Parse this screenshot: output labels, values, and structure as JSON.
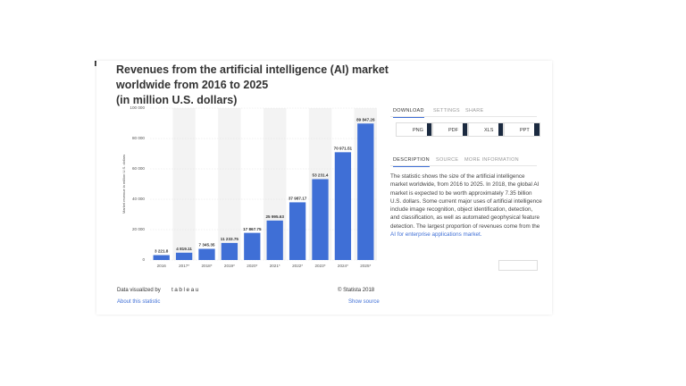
{
  "chart_data": {
    "type": "bar",
    "title": "Revenues from the artificial intelligence (AI) market worldwide from 2016 to 2025",
    "subtitle": "(in million U.S. dollars)",
    "y_label": "Market revenue in million U.S. dollars",
    "categories": [
      "2016",
      "2017*",
      "2018*",
      "2019*",
      "2020*",
      "2021*",
      "2022*",
      "2023*",
      "2024*",
      "2025*"
    ],
    "values": [
      3221.8,
      4819.11,
      7345.35,
      11233.75,
      17867.75,
      25995.63,
      37987.17,
      53231.4,
      70971.51,
      89847.26
    ],
    "value_labels": [
      "3 221.8",
      "4 819.11",
      "7 345.35",
      "11 233.75",
      "17 867.75",
      "25 995.63",
      "37 987.17",
      "53 231.4",
      "70 971.51",
      "89 847.26"
    ],
    "color": "#3f6fd6",
    "ylim": [
      0,
      100000
    ],
    "yticks": [
      0,
      {
        "value": 20000,
        "label": "20 000"
      },
      {
        "value": 40000,
        "label": "40 000"
      },
      {
        "value": 60000,
        "label": "60 000"
      },
      {
        "value": 80000,
        "label": "80 000"
      },
      {
        "value": 100000,
        "label": "100 000"
      }
    ],
    "grid": true
  },
  "footer": {
    "credit": "Data visualized by",
    "brand": "tableau",
    "copyright": "© Statista 2018",
    "about": "About this statistic",
    "source": "Show source"
  },
  "panel": {
    "tabs": [
      "DOWNLOAD",
      "SETTINGS",
      "SHARE"
    ],
    "buttons": [
      "PNG",
      "PDF",
      "XLS",
      "PPT"
    ],
    "info_tabs": [
      "DESCRIPTION",
      "SOURCE",
      "MORE INFORMATION"
    ],
    "description": {
      "text": "The statistic shows the size of the artificial intelligence market worldwide, from 2016 to 2025. In 2018, the global AI market is expected to be worth approximately 7.35 billion U.S. dollars. Some current major uses of artificial intelligence include image recognition, object identification, detection, and classification, as well as automated geophysical feature detection. The largest proportion of revenues come from the ",
      "link": "AI for enterprise applications market."
    }
  }
}
